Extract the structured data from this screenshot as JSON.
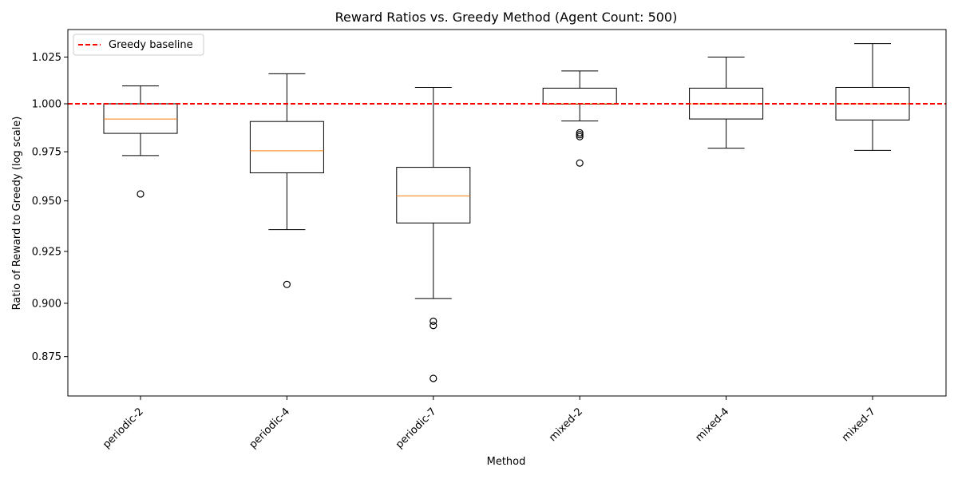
{
  "chart_data": {
    "type": "box",
    "title": "Reward Ratios vs. Greedy Method (Agent Count: 500)",
    "xlabel": "Method",
    "ylabel": "Ratio of Reward to Greedy (log scale)",
    "scale": "log",
    "ylim": [
      0.857,
      1.04
    ],
    "yticks": [
      "0.875",
      "0.900",
      "0.925",
      "0.950",
      "0.975",
      "1.000",
      "1.025"
    ],
    "grid": false,
    "legend": {
      "position": "top-left",
      "entries": [
        {
          "label": "Greedy baseline",
          "style": "dashed",
          "color": "#ff0000"
        }
      ]
    },
    "baseline": {
      "label": "Greedy baseline",
      "value": 1.0,
      "color": "#ff0000"
    },
    "categories": [
      "periodic-2",
      "periodic-4",
      "periodic-7",
      "mixed-2",
      "mixed-4",
      "mixed-7"
    ],
    "boxes": [
      {
        "name": "periodic-2",
        "whisker_low": 0.973,
        "q1": 0.9845,
        "median": 0.992,
        "q3": 1.0,
        "whisker_high": 1.0095,
        "outliers": [
          0.9535
        ]
      },
      {
        "name": "periodic-4",
        "whisker_low": 0.9357,
        "q1": 0.9642,
        "median": 0.9755,
        "q3": 0.9907,
        "whisker_high": 1.016,
        "outliers": [
          0.909
        ]
      },
      {
        "name": "periodic-7",
        "whisker_low": 0.9023,
        "q1": 0.939,
        "median": 0.9525,
        "q3": 0.967,
        "whisker_high": 1.0087,
        "outliers": [
          0.8915,
          0.8895,
          0.865
        ]
      },
      {
        "name": "mixed-2",
        "whisker_low": 0.991,
        "q1": 0.9998,
        "median": 1.0,
        "q3": 1.0083,
        "whisker_high": 1.0175,
        "outliers": [
          0.9848,
          0.9838,
          0.9828,
          0.9692
        ]
      },
      {
        "name": "mixed-4",
        "whisker_low": 0.9768,
        "q1": 0.992,
        "median": 1.0,
        "q3": 1.0083,
        "whisker_high": 1.025,
        "outliers": []
      },
      {
        "name": "mixed-7",
        "whisker_low": 0.9757,
        "q1": 0.9915,
        "median": 1.0,
        "q3": 1.0087,
        "whisker_high": 1.0323,
        "outliers": []
      }
    ],
    "colors": {
      "box": "#000000",
      "median": "#ff7f0e",
      "baseline": "#ff0000"
    }
  }
}
